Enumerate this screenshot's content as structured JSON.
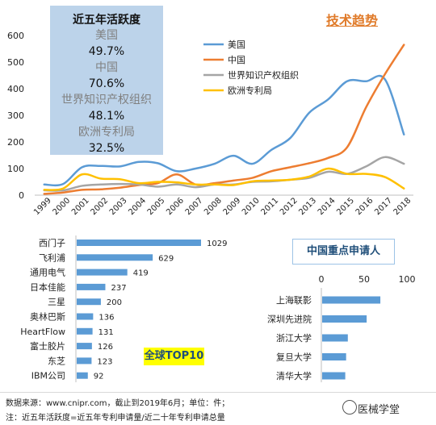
{
  "activity": {
    "title": "近五年活跃度",
    "items": [
      {
        "label": "美国",
        "value": "49.7%"
      },
      {
        "label": "中国",
        "value": "70.6%"
      },
      {
        "label": "世界知识产权组织",
        "value": "48.1%"
      },
      {
        "label": "欧洲专利局",
        "value": "32.5%"
      }
    ]
  },
  "trend_title": "技术趋势",
  "top10_title": "全球TOP10",
  "china_title": "中国重点申请人",
  "footer": {
    "source": "数据来源：www.cnipr.com，截止到2019年6月；单位：件；",
    "note": "注：近五年活跃度=近五年专利申请量/近二十年专利申请总量"
  },
  "watermark": "医械学堂",
  "colors": {
    "us": "#5b9bd5",
    "china": "#ed7d31",
    "wipo": "#a5a5a5",
    "epo": "#ffc000",
    "bar": "#5b9bd5"
  },
  "chart_data": [
    {
      "type": "line",
      "title": "技术趋势",
      "x": [
        "1999",
        "2000",
        "2001",
        "2002",
        "2003",
        "2004",
        "2005",
        "2006",
        "2007",
        "2008",
        "2009",
        "2010",
        "2011",
        "2012",
        "2013",
        "2014",
        "2015",
        "2016",
        "2017",
        "2018"
      ],
      "ylim": [
        0,
        600
      ],
      "yticks": [
        0,
        100,
        200,
        300,
        400,
        500,
        600
      ],
      "grid": false,
      "legend": "right",
      "series": [
        {
          "name": "美国",
          "values": [
            40,
            42,
            105,
            110,
            108,
            125,
            120,
            90,
            100,
            118,
            148,
            118,
            170,
            215,
            310,
            360,
            428,
            428,
            435,
            228
          ]
        },
        {
          "name": "中国",
          "values": [
            5,
            10,
            20,
            22,
            28,
            38,
            45,
            78,
            40,
            45,
            55,
            65,
            90,
            105,
            120,
            140,
            180,
            330,
            455,
            565
          ]
        },
        {
          "name": "世界知识产权组织",
          "values": [
            18,
            18,
            35,
            40,
            42,
            40,
            32,
            40,
            30,
            40,
            40,
            50,
            52,
            58,
            65,
            88,
            80,
            108,
            143,
            118
          ]
        },
        {
          "name": "欧洲专利局",
          "values": [
            20,
            25,
            78,
            62,
            60,
            45,
            50,
            48,
            40,
            40,
            38,
            52,
            55,
            58,
            70,
            100,
            80,
            80,
            68,
            25
          ]
        }
      ]
    },
    {
      "type": "bar",
      "title": "全球TOP10",
      "orientation": "horizontal",
      "categories": [
        "西门子",
        "飞利浦",
        "通用电气",
        "日本佳能",
        "三星",
        "奥林巴斯",
        "HeartFlow",
        "富士胶片",
        "东芝",
        "IBM公司"
      ],
      "values": [
        1029,
        629,
        419,
        237,
        200,
        136,
        131,
        126,
        123,
        92
      ],
      "data_labels": true
    },
    {
      "type": "bar",
      "title": "中国重点申请人",
      "orientation": "horizontal",
      "categories": [
        "上海联影",
        "深圳先进院",
        "浙江大学",
        "复旦大学",
        "清华大学"
      ],
      "values": [
        68,
        52,
        30,
        28,
        27
      ],
      "xlim": [
        0,
        100
      ],
      "xticks": [
        0,
        50,
        100
      ]
    }
  ]
}
